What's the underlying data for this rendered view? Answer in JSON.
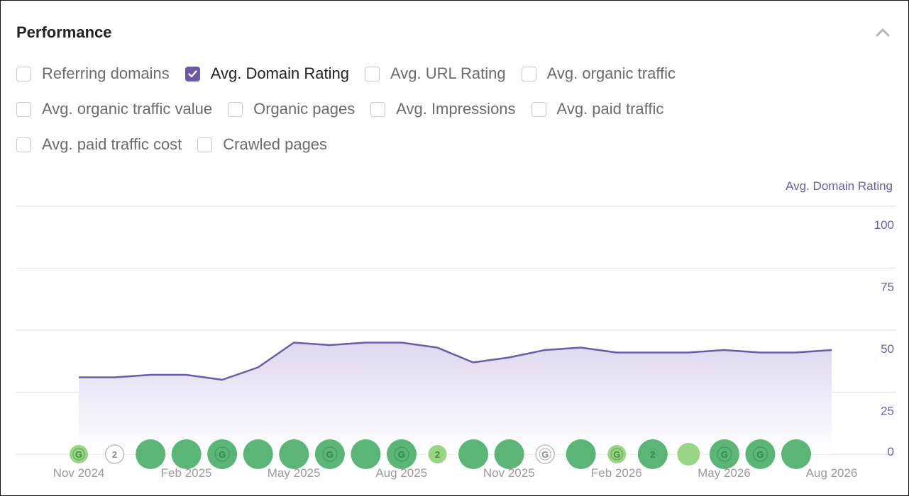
{
  "panel": {
    "title": "Performance",
    "collapse_icon": "chevron-up-icon"
  },
  "metrics": [
    {
      "label": "Referring domains",
      "checked": false
    },
    {
      "label": "Avg. Domain Rating",
      "checked": true
    },
    {
      "label": "Avg. URL Rating",
      "checked": false
    },
    {
      "label": "Avg. organic traffic",
      "checked": false
    },
    {
      "label": "Avg. organic traffic value",
      "checked": false
    },
    {
      "label": "Organic pages",
      "checked": false
    },
    {
      "label": "Avg. Impressions",
      "checked": false
    },
    {
      "label": "Avg. paid traffic",
      "checked": false
    },
    {
      "label": "Avg. paid traffic cost",
      "checked": false
    },
    {
      "label": "Crawled pages",
      "checked": false
    }
  ],
  "colors": {
    "accent": "#6c5aa8",
    "area_fill": "#ddd8ef",
    "grid": "#e8e8e8",
    "dot_dark": "#4caf6a",
    "dot_light": "#8fd17a",
    "tick_x": "#9a9a9a"
  },
  "chart_data": {
    "type": "area",
    "series": [
      {
        "name": "Avg. Domain Rating",
        "values": [
          31,
          31,
          32,
          32,
          30,
          35,
          45,
          44,
          45,
          45,
          43,
          37,
          39,
          42,
          43,
          41,
          41,
          41,
          42,
          41,
          41,
          42
        ]
      }
    ],
    "x_tick_labels": [
      "Nov 2024",
      "Feb 2025",
      "May 2025",
      "Aug 2025",
      "Nov 2025",
      "Feb 2026",
      "May 2026",
      "Aug 2026"
    ],
    "y_axis_title": "Avg. Domain Rating",
    "y_tick_labels": [
      "100",
      "75",
      "50",
      "25",
      "0"
    ],
    "ylim": [
      0,
      100
    ],
    "y_axis_side": "right",
    "grid": true,
    "markers": [
      {
        "kind": "google-update",
        "size": "small",
        "tone": "light",
        "label": "G"
      },
      {
        "kind": "count",
        "size": "small",
        "tone": "outline",
        "label": "2"
      },
      {
        "kind": "update",
        "size": "large",
        "tone": "dark",
        "label": ""
      },
      {
        "kind": "update",
        "size": "large",
        "tone": "dark",
        "label": ""
      },
      {
        "kind": "google-update",
        "size": "large",
        "tone": "dark",
        "label": "G"
      },
      {
        "kind": "update",
        "size": "large",
        "tone": "dark",
        "label": ""
      },
      {
        "kind": "update",
        "size": "large",
        "tone": "dark",
        "label": ""
      },
      {
        "kind": "google-update",
        "size": "large",
        "tone": "dark",
        "label": "G"
      },
      {
        "kind": "update",
        "size": "large",
        "tone": "dark",
        "label": ""
      },
      {
        "kind": "google-update",
        "size": "large",
        "tone": "dark",
        "label": "G"
      },
      {
        "kind": "count",
        "size": "small",
        "tone": "light",
        "label": "2"
      },
      {
        "kind": "update",
        "size": "large",
        "tone": "dark",
        "label": ""
      },
      {
        "kind": "update",
        "size": "large",
        "tone": "dark",
        "label": ""
      },
      {
        "kind": "google-update",
        "size": "small",
        "tone": "outline",
        "label": "G"
      },
      {
        "kind": "update",
        "size": "large",
        "tone": "dark",
        "label": ""
      },
      {
        "kind": "google-update",
        "size": "small",
        "tone": "light",
        "label": "G"
      },
      {
        "kind": "count",
        "size": "large",
        "tone": "dark",
        "label": "2"
      },
      {
        "kind": "update",
        "size": "small",
        "tone": "light",
        "label": ""
      },
      {
        "kind": "google-update",
        "size": "large",
        "tone": "dark",
        "label": "G"
      },
      {
        "kind": "google-update",
        "size": "large",
        "tone": "dark",
        "label": "G"
      },
      {
        "kind": "update",
        "size": "large",
        "tone": "dark",
        "label": ""
      }
    ]
  }
}
